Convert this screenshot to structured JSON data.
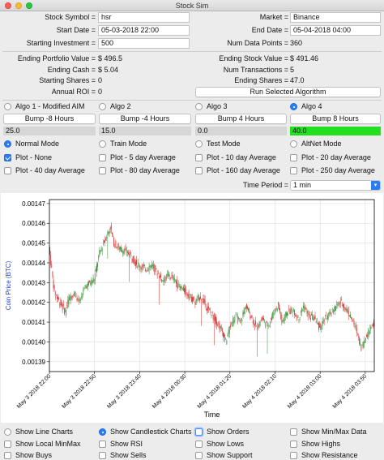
{
  "window": {
    "title": "Stock Sim"
  },
  "form": {
    "stock_symbol_label": "Stock Symbol =",
    "stock_symbol_value": "hsr",
    "market_label": "Market =",
    "market_value": "Binance",
    "start_date_label": "Start Date =",
    "start_date_value": "05-03-2018 22:00",
    "end_date_label": "End Date =",
    "end_date_value": "05-04-2018 04:00",
    "starting_investment_label": "Starting Investment =",
    "starting_investment_value": "500",
    "num_data_points_label": "Num Data Points =",
    "num_data_points_value": "360"
  },
  "results": {
    "ending_portfolio_label": "Ending Portfolio Value =",
    "ending_portfolio_value": "$ 496.5",
    "ending_stock_label": "Ending Stock Value =",
    "ending_stock_value": "$ 491.46",
    "ending_cash_label": "Ending Cash =",
    "ending_cash_value": "$ 5.04",
    "num_transactions_label": "Num Transactions =",
    "num_transactions_value": "5",
    "starting_shares_label": "Starting Shares =",
    "starting_shares_value": "0",
    "ending_shares_label": "Ending Shares =",
    "ending_shares_value": "47.0",
    "annual_roi_label": "Annual ROI =",
    "annual_roi_value": "0",
    "run_button": "Run Selected Algorithm"
  },
  "algos": [
    {
      "label": "Algo 1 - Modified AIM",
      "selected": false,
      "bump": "Bump -8 Hours",
      "value": "25.0",
      "fill": "#d6d6d6"
    },
    {
      "label": "Algo 2",
      "selected": false,
      "bump": "Bump -4 Hours",
      "value": "15.0",
      "fill": "#d6d6d6"
    },
    {
      "label": "Algo 3",
      "selected": false,
      "bump": "Bump 4 Hours",
      "value": "0.0",
      "fill": "#d6d6d6"
    },
    {
      "label": "Algo 4",
      "selected": true,
      "bump": "Bump 8 Hours",
      "value": "40.0",
      "fill": "#22e01f"
    }
  ],
  "modes": [
    {
      "label": "Normal Mode",
      "selected": true
    },
    {
      "label": "Train Mode",
      "selected": false
    },
    {
      "label": "Test Mode",
      "selected": false
    },
    {
      "label": "AltNet Mode",
      "selected": false
    }
  ],
  "plots": [
    {
      "label": "Plot - None",
      "checked": true
    },
    {
      "label": "Plot - 5 day Average",
      "checked": false
    },
    {
      "label": "Plot - 10 day Average",
      "checked": false
    },
    {
      "label": "Plot - 20 day Average",
      "checked": false
    },
    {
      "label": "Plot - 40 day Average",
      "checked": false
    },
    {
      "label": "Plot - 80 day Average",
      "checked": false
    },
    {
      "label": "Plot - 160 day Average",
      "checked": false
    },
    {
      "label": "Plot - 250 day Average",
      "checked": false
    }
  ],
  "time_period": {
    "label": "Time Period =",
    "value": "1 min"
  },
  "options": [
    {
      "label": "Show Line Charts",
      "selected": false,
      "kind": "radio"
    },
    {
      "label": "Show Candlestick Charts",
      "selected": true,
      "kind": "radio"
    },
    {
      "label": "Show Orders",
      "selected": false,
      "kind": "check",
      "focus": true
    },
    {
      "label": "Show Min/Max Data",
      "selected": false,
      "kind": "check"
    },
    {
      "label": "Show Local MinMax",
      "selected": false,
      "kind": "check"
    },
    {
      "label": "Show RSI",
      "selected": false,
      "kind": "check"
    },
    {
      "label": "Show Lows",
      "selected": false,
      "kind": "check"
    },
    {
      "label": "Show Highs",
      "selected": false,
      "kind": "check"
    },
    {
      "label": "Show Buys",
      "selected": false,
      "kind": "check"
    },
    {
      "label": "Show Sells",
      "selected": false,
      "kind": "check"
    },
    {
      "label": "Show Support",
      "selected": false,
      "kind": "check"
    },
    {
      "label": "Show Resistance",
      "selected": false,
      "kind": "check"
    }
  ],
  "chart_data": {
    "type": "candlestick",
    "ylabel": "Coin Price (BTC)",
    "xlabel": "Time",
    "ylim": [
      0.001385,
      0.001472
    ],
    "yticks": [
      "0.00139",
      "0.00140",
      "0.00141",
      "0.00142",
      "0.00143",
      "0.00144",
      "0.00145",
      "0.00146",
      "0.00147"
    ],
    "ytick_values": [
      0.00139,
      0.0014,
      0.00141,
      0.00142,
      0.00143,
      0.00144,
      0.00145,
      0.00146,
      0.00147
    ],
    "xticks": [
      "May 3 2018 22:00",
      "May 3 2018 22:50",
      "May 3 2018 23:40",
      "May 4 2018 00:30",
      "May 4 2018 01:20",
      "May 4 2018 02:10",
      "May 4 2018 03:00",
      "May 4 2018 03:50"
    ],
    "xtick_minutes": [
      0,
      50,
      100,
      150,
      200,
      250,
      300,
      350
    ],
    "x_range_minutes": [
      0,
      360
    ],
    "up_color": "#2e8b2e",
    "down_color": "#d42a2a",
    "price_path": [
      [
        0,
        0.001448
      ],
      [
        6,
        0.001425
      ],
      [
        12,
        0.00142
      ],
      [
        18,
        0.001415
      ],
      [
        22,
        0.001422
      ],
      [
        28,
        0.001425
      ],
      [
        34,
        0.00142
      ],
      [
        40,
        0.001428
      ],
      [
        50,
        0.001432
      ],
      [
        56,
        0.001445
      ],
      [
        62,
        0.001452
      ],
      [
        68,
        0.001458
      ],
      [
        72,
        0.00145
      ],
      [
        78,
        0.001447
      ],
      [
        84,
        0.001446
      ],
      [
        90,
        0.001444
      ],
      [
        96,
        0.00144
      ],
      [
        102,
        0.001438
      ],
      [
        108,
        0.001437
      ],
      [
        114,
        0.001439
      ],
      [
        120,
        0.001435
      ],
      [
        126,
        0.001431
      ],
      [
        132,
        0.001434
      ],
      [
        138,
        0.001432
      ],
      [
        144,
        0.001428
      ],
      [
        150,
        0.001426
      ],
      [
        156,
        0.001423
      ],
      [
        162,
        0.00142
      ],
      [
        168,
        0.001423
      ],
      [
        174,
        0.001418
      ],
      [
        180,
        0.001414
      ],
      [
        186,
        0.00141
      ],
      [
        192,
        0.001405
      ],
      [
        196,
        0.0014
      ],
      [
        200,
        0.001407
      ],
      [
        206,
        0.001413
      ],
      [
        212,
        0.00141
      ],
      [
        218,
        0.001418
      ],
      [
        224,
        0.001413
      ],
      [
        230,
        0.001407
      ],
      [
        236,
        0.001412
      ],
      [
        242,
        0.001408
      ],
      [
        248,
        0.001414
      ],
      [
        254,
        0.001419
      ],
      [
        258,
        0.00141
      ],
      [
        264,
        0.001415
      ],
      [
        270,
        0.001416
      ],
      [
        276,
        0.001412
      ],
      [
        282,
        0.001418
      ],
      [
        288,
        0.001413
      ],
      [
        294,
        0.001412
      ],
      [
        300,
        0.001407
      ],
      [
        306,
        0.001412
      ],
      [
        312,
        0.001414
      ],
      [
        318,
        0.001418
      ],
      [
        324,
        0.00142
      ],
      [
        330,
        0.001416
      ],
      [
        336,
        0.001411
      ],
      [
        342,
        0.001404
      ],
      [
        346,
        0.001397
      ],
      [
        352,
        0.001403
      ],
      [
        356,
        0.001407
      ],
      [
        360,
        0.00141
      ]
    ]
  }
}
